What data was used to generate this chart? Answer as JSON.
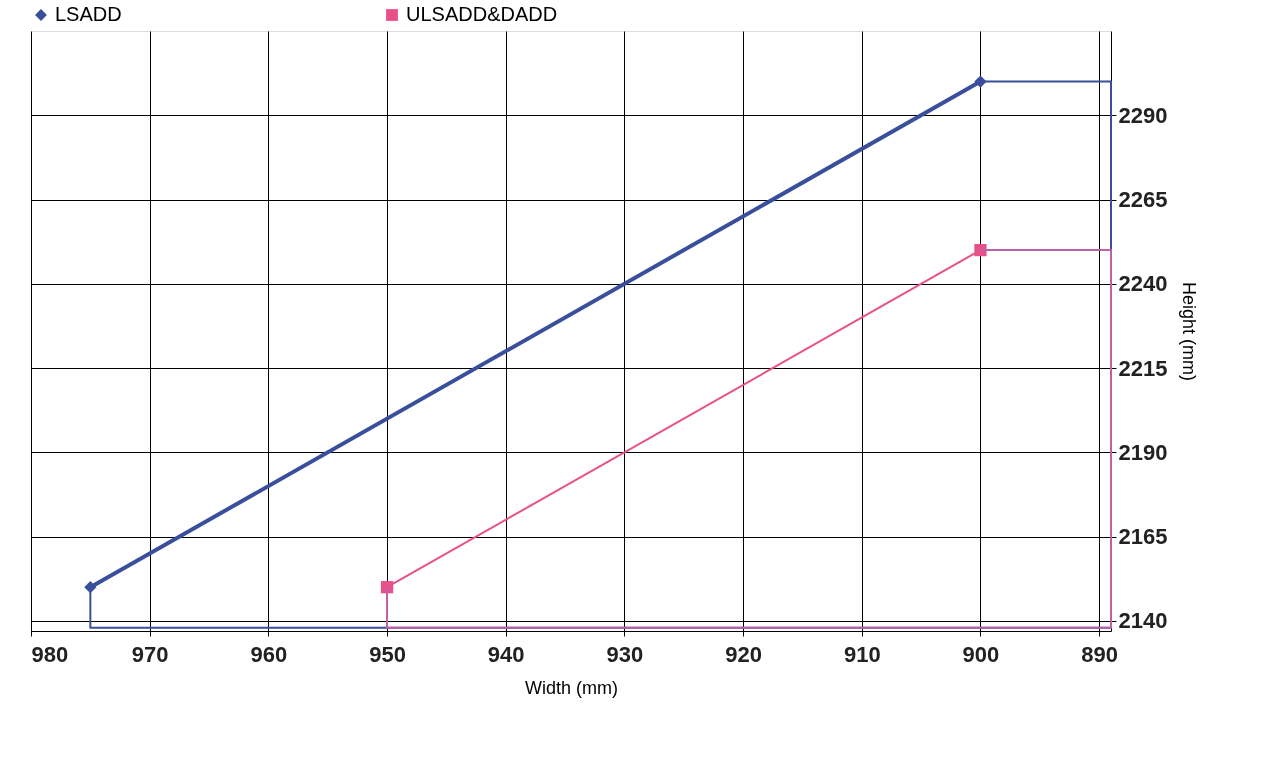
{
  "chart_data": {
    "type": "line",
    "xlabel": "Width (mm)",
    "ylabel": "Height (mm)",
    "xlim": [
      980,
      889
    ],
    "xticks": [
      980,
      970,
      960,
      950,
      940,
      930,
      920,
      910,
      900,
      890
    ],
    "ylim": [
      2137,
      2315
    ],
    "yticks": [
      2140,
      2165,
      2190,
      2215,
      2240,
      2265,
      2290
    ],
    "grid": true,
    "legend": "top",
    "series": [
      {
        "name": "LSADD",
        "color": "#3a4f9c",
        "marker": "diamond",
        "x": [
          975,
          900
        ],
        "values": [
          2150,
          2300
        ]
      },
      {
        "name": "ULSADD&DADD",
        "color": "#e8508a",
        "marker": "square",
        "x": [
          950,
          900
        ],
        "values": [
          2150,
          2250
        ]
      },
      {
        "color": "#3a4f9c",
        "marker": "none",
        "x": [
          900,
          889,
          889,
          975,
          975
        ],
        "values": [
          2300,
          2300,
          2138,
          2138,
          2150
        ]
      },
      {
        "color": "#c060a8",
        "marker": "none",
        "x": [
          900,
          889,
          889,
          950,
          950
        ],
        "values": [
          2250,
          2250,
          2138,
          2138,
          2150
        ]
      }
    ]
  }
}
